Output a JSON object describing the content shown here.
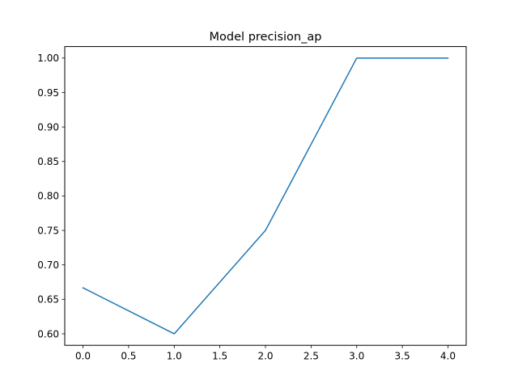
{
  "chart_data": {
    "type": "line",
    "title": "Model precision_ap",
    "xlabel": "",
    "ylabel": "",
    "x": [
      0,
      1,
      2,
      3,
      4
    ],
    "series": [
      {
        "values": [
          0.6667,
          0.6,
          0.75,
          1.0,
          1.0
        ],
        "color": "#1f77b4"
      }
    ],
    "xlim": [
      -0.2,
      4.2
    ],
    "ylim": [
      0.58333,
      1.01667
    ],
    "xticks": [
      0,
      0.5,
      1,
      1.5,
      2,
      2.5,
      3,
      3.5,
      4
    ],
    "xtick_labels": [
      "0.0",
      "0.5",
      "1.0",
      "1.5",
      "2.0",
      "2.5",
      "3.0",
      "3.5",
      "4.0"
    ],
    "yticks": [
      0.6,
      0.65,
      0.7,
      0.75,
      0.8,
      0.85,
      0.9,
      0.95,
      1.0
    ],
    "ytick_labels": [
      "0.60",
      "0.65",
      "0.70",
      "0.75",
      "0.80",
      "0.85",
      "0.90",
      "0.95",
      "1.00"
    ],
    "grid": false,
    "legend": "none"
  }
}
